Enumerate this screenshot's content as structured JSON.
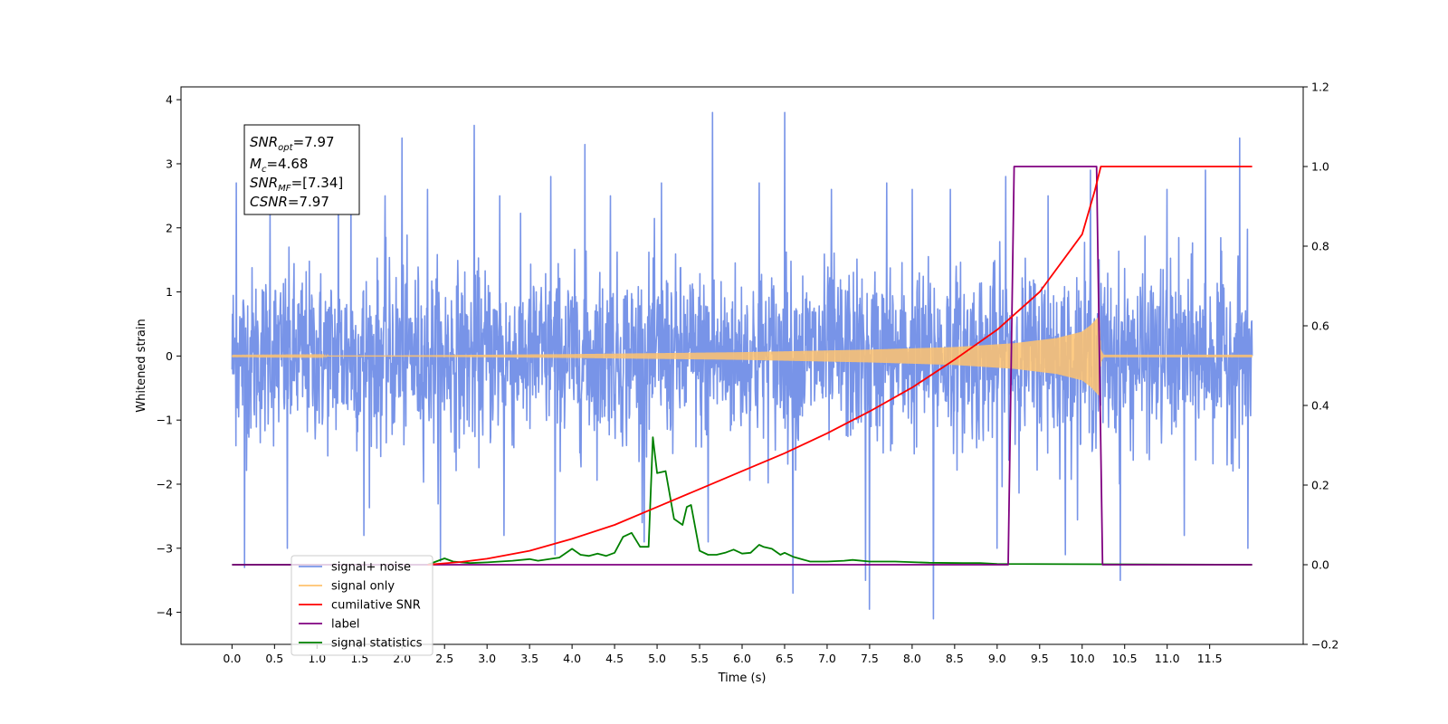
{
  "chart_data": {
    "type": "line",
    "xlabel": "Time (s)",
    "ylabel_left": "Whitened strain",
    "ylabel_right": "",
    "xlim": [
      -0.6,
      12.6
    ],
    "ylim_left": [
      -4.5,
      4.2
    ],
    "ylim_right": [
      -0.2,
      1.2
    ],
    "x_ticks": [
      0.0,
      0.5,
      1.0,
      1.5,
      2.0,
      2.5,
      3.0,
      3.5,
      4.0,
      4.5,
      5.0,
      5.5,
      6.0,
      6.5,
      7.0,
      7.5,
      8.0,
      8.5,
      9.0,
      9.5,
      10.0,
      10.5,
      11.0,
      11.5
    ],
    "x_tick_labels": [
      "0.0",
      "0.5",
      "1.0",
      "1.5",
      "2.0",
      "2.5",
      "3.0",
      "3.5",
      "4.0",
      "4.5",
      "5.0",
      "5.5",
      "6.0",
      "6.5",
      "7.0",
      "7.5",
      "8.0",
      "8.5",
      "9.0",
      "9.5",
      "10.0",
      "10.5",
      "11.0",
      "11.5"
    ],
    "y_left_ticks": [
      -4,
      -3,
      -2,
      -1,
      0,
      1,
      2,
      3,
      4
    ],
    "y_left_tick_labels": [
      "−4",
      "−3",
      "−2",
      "−1",
      "0",
      "1",
      "2",
      "3",
      "4"
    ],
    "y_right_ticks": [
      -0.2,
      0.0,
      0.2,
      0.4,
      0.6,
      0.8,
      1.0,
      1.2
    ],
    "y_right_tick_labels": [
      "−0.2",
      "0.0",
      "0.2",
      "0.4",
      "0.6",
      "0.8",
      "1.0",
      "1.2"
    ],
    "grid": false,
    "legend_position": "lower-left",
    "annotation": {
      "snr_opt": {
        "symbol": "SNR",
        "subscript": "opt",
        "value": "=7.97"
      },
      "mc": {
        "symbol": "M",
        "subscript": "c",
        "value": "=4.68"
      },
      "snr_mf": {
        "symbol": "SNR",
        "subscript": "MF",
        "value": "=[7.34]"
      },
      "csnr": {
        "symbol": "CSNR",
        "value": "=7.97"
      }
    },
    "series": [
      {
        "name": "signal+ noise",
        "color": "#7894e8",
        "axis": "left",
        "style": "dense noise band",
        "x_range": [
          0.0,
          12.0
        ],
        "typical_band": [
          -1.6,
          1.6
        ],
        "peak_x": [
          0.05,
          0.45,
          1.25,
          1.4,
          1.8,
          2.0,
          2.3,
          2.85,
          3.15,
          3.75,
          4.15,
          4.45,
          5.05,
          5.65,
          6.2,
          6.5,
          7.05,
          7.7,
          8.0,
          8.45,
          9.1,
          9.6,
          10.1,
          11.0,
          11.45,
          11.85
        ],
        "peak_y": [
          2.7,
          2.3,
          2.8,
          2.6,
          2.5,
          3.4,
          2.6,
          3.6,
          2.5,
          2.8,
          3.3,
          2.5,
          2.7,
          3.8,
          2.7,
          3.8,
          2.6,
          2.7,
          2.6,
          2.6,
          2.8,
          2.5,
          2.9,
          2.6,
          2.9,
          3.4
        ],
        "trough_x": [
          0.15,
          0.65,
          1.55,
          2.45,
          3.2,
          3.8,
          4.85,
          5.6,
          6.6,
          7.45,
          7.5,
          8.25,
          9.0,
          9.8,
          10.45,
          11.2,
          11.95
        ],
        "trough_y": [
          -3.3,
          -3.0,
          -2.8,
          -3.2,
          -2.8,
          -3.1,
          -2.9,
          -2.9,
          -3.7,
          -3.5,
          -3.95,
          -4.1,
          -3.0,
          -3.1,
          -3.5,
          -2.8,
          -3.0
        ]
      },
      {
        "name": "signal only",
        "color": "#ffc36e",
        "axis": "left",
        "style": "chirp envelope",
        "x": [
          0.0,
          2.0,
          4.0,
          6.0,
          7.5,
          8.5,
          9.2,
          9.7,
          10.0,
          10.1,
          10.2,
          10.22,
          10.25,
          12.0
        ],
        "amplitude": [
          0.005,
          0.01,
          0.03,
          0.06,
          0.1,
          0.14,
          0.2,
          0.28,
          0.38,
          0.48,
          0.62,
          0.1,
          0.02,
          0.02
        ]
      },
      {
        "name": "cumilative SNR",
        "color": "#ff0000",
        "axis": "right",
        "x": [
          2.3,
          2.7,
          3.0,
          3.5,
          4.0,
          4.5,
          5.0,
          5.5,
          6.0,
          6.5,
          7.0,
          7.5,
          8.0,
          8.5,
          9.0,
          9.5,
          10.0,
          10.15,
          10.22,
          10.3,
          12.0
        ],
        "values": [
          0.0,
          0.007,
          0.015,
          0.035,
          0.065,
          0.1,
          0.145,
          0.19,
          0.235,
          0.28,
          0.33,
          0.385,
          0.445,
          0.515,
          0.59,
          0.685,
          0.83,
          0.94,
          1.0,
          1.0,
          1.0
        ]
      },
      {
        "name": "label",
        "color": "#800080",
        "axis": "right",
        "x": [
          0.0,
          9.13,
          9.2,
          10.17,
          10.24,
          12.0
        ],
        "values": [
          0.0,
          0.0,
          1.0,
          1.0,
          0.0,
          0.0
        ]
      },
      {
        "name": "signal statistics",
        "color": "#008000",
        "axis": "right",
        "x": [
          0.0,
          2.3,
          2.4,
          2.5,
          2.6,
          2.8,
          3.0,
          3.3,
          3.5,
          3.6,
          3.85,
          4.0,
          4.1,
          4.2,
          4.3,
          4.4,
          4.5,
          4.6,
          4.7,
          4.8,
          4.9,
          4.95,
          5.0,
          5.1,
          5.2,
          5.3,
          5.35,
          5.4,
          5.5,
          5.6,
          5.7,
          5.8,
          5.9,
          6.0,
          6.1,
          6.2,
          6.25,
          6.35,
          6.45,
          6.5,
          6.6,
          6.8,
          7.0,
          7.2,
          7.3,
          7.5,
          7.8,
          8.2,
          8.6,
          8.8,
          9.0,
          12.0
        ],
        "values": [
          0.0,
          0.0,
          0.008,
          0.016,
          0.008,
          0.004,
          0.006,
          0.01,
          0.014,
          0.01,
          0.018,
          0.04,
          0.025,
          0.022,
          0.028,
          0.022,
          0.03,
          0.07,
          0.08,
          0.045,
          0.045,
          0.32,
          0.23,
          0.235,
          0.115,
          0.1,
          0.145,
          0.15,
          0.035,
          0.025,
          0.025,
          0.03,
          0.038,
          0.028,
          0.03,
          0.05,
          0.045,
          0.04,
          0.025,
          0.03,
          0.02,
          0.008,
          0.008,
          0.01,
          0.012,
          0.008,
          0.008,
          0.005,
          0.004,
          0.004,
          0.002,
          0.0
        ]
      }
    ]
  }
}
